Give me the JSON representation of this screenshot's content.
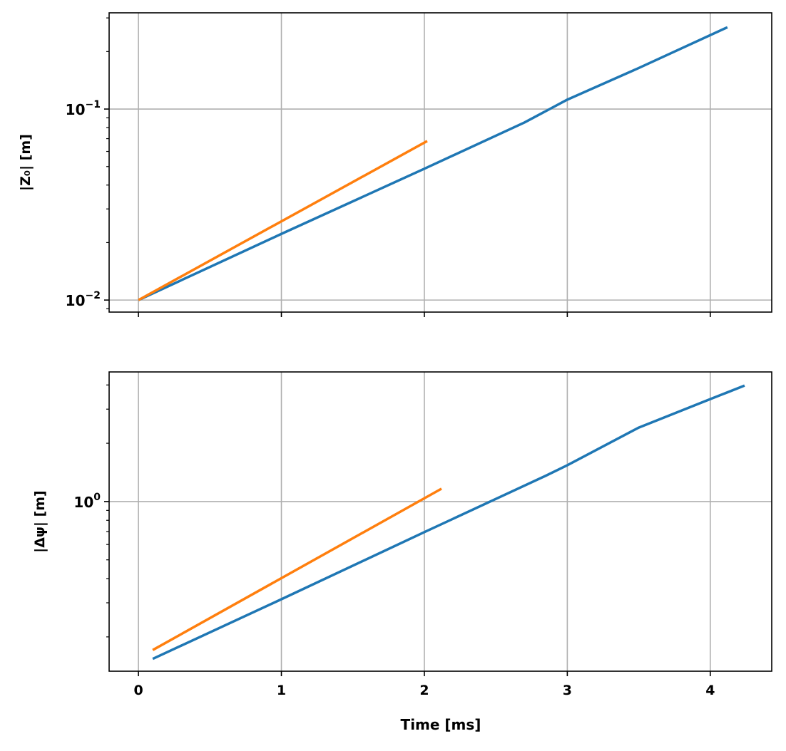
{
  "chart_data": [
    {
      "type": "line",
      "title": "",
      "xlabel": "",
      "ylabel": "|Z₀| [m]",
      "yscale": "log",
      "xlim": [
        -0.205,
        4.43
      ],
      "ylim": [
        0.00865,
        0.319
      ],
      "grid": true,
      "xticks": [
        "0",
        "1",
        "2",
        "3",
        "4"
      ],
      "xtick_values": [
        0,
        1,
        2,
        3,
        4
      ],
      "xtick_labels_visible": false,
      "yticks": [
        {
          "value": 0.1,
          "base": "10",
          "exp": "−1"
        },
        {
          "value": 0.01,
          "base": "10",
          "exp": "−2"
        }
      ],
      "series": [
        {
          "name": "blue",
          "color": "#1f77b4",
          "x": [
            0,
            1,
            2,
            2.7,
            3,
            3.5,
            4.12
          ],
          "y": [
            0.01,
            0.0222,
            0.0487,
            0.085,
            0.112,
            0.164,
            0.268
          ]
        },
        {
          "name": "orange",
          "color": "#ff7f0e",
          "x": [
            0,
            2.02
          ],
          "y": [
            0.01,
            0.068
          ]
        }
      ]
    },
    {
      "type": "line",
      "title": "",
      "xlabel": "Time [ms]",
      "ylabel": "|Δψ| [m]",
      "yscale": "log",
      "xlim": [
        -0.205,
        4.43
      ],
      "ylim": [
        0.133,
        4.67
      ],
      "grid": true,
      "xticks": [
        "0",
        "1",
        "2",
        "3",
        "4"
      ],
      "xtick_values": [
        0,
        1,
        2,
        3,
        4
      ],
      "xtick_labels_visible": true,
      "yticks": [
        {
          "value": 1,
          "base": "10",
          "exp": "0"
        }
      ],
      "series": [
        {
          "name": "blue",
          "color": "#1f77b4",
          "x": [
            0.1,
            1,
            2,
            2.85,
            3,
            3.5,
            4,
            4.24
          ],
          "y": [
            0.154,
            0.313,
            0.695,
            1.36,
            1.54,
            2.41,
            3.38,
            3.97
          ]
        },
        {
          "name": "orange",
          "color": "#ff7f0e",
          "x": [
            0.1,
            2.12
          ],
          "y": [
            0.171,
            1.165
          ]
        }
      ]
    }
  ]
}
